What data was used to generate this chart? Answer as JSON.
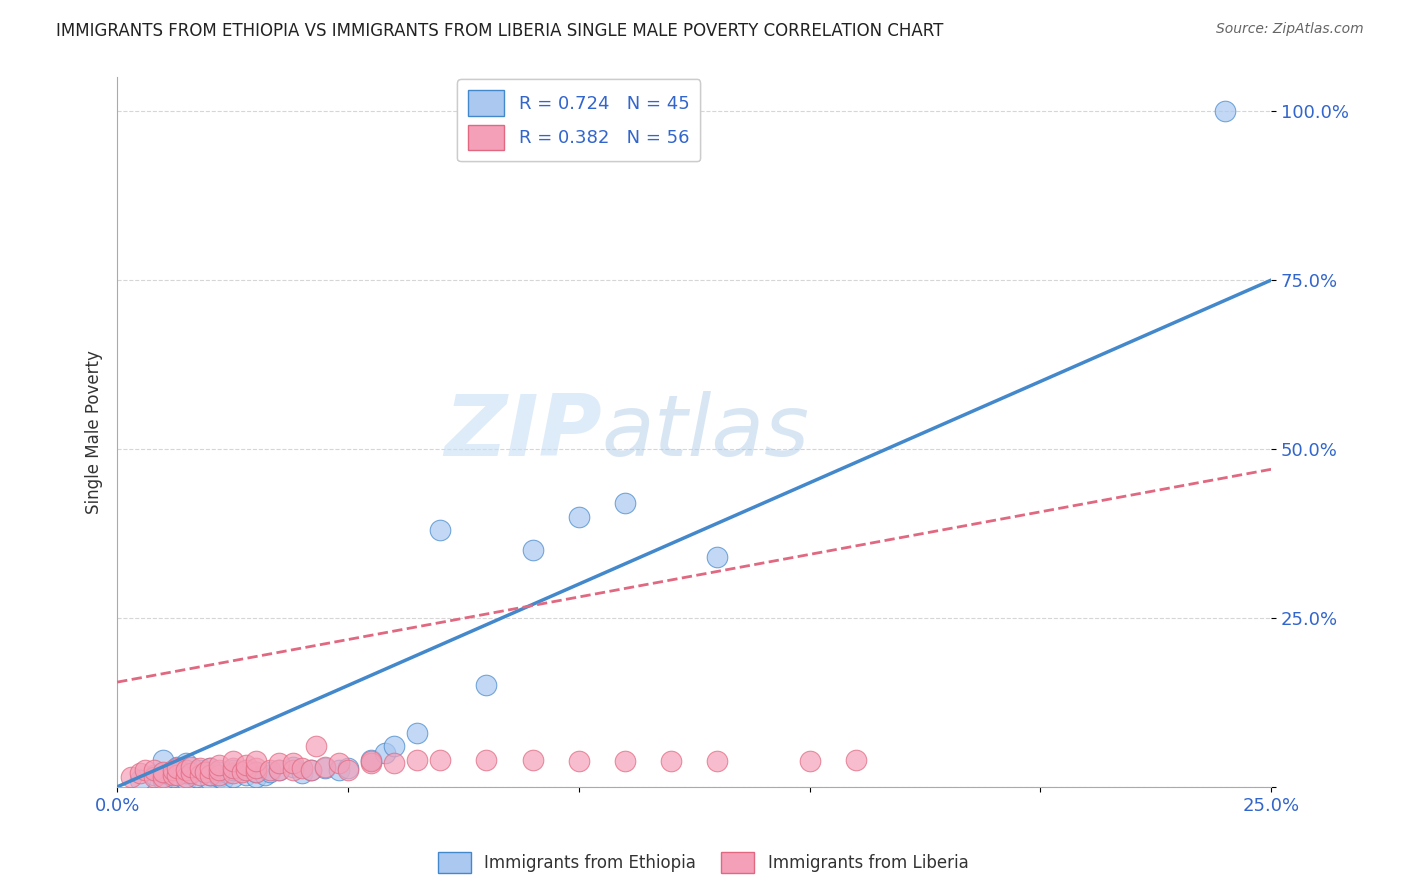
{
  "title": "IMMIGRANTS FROM ETHIOPIA VS IMMIGRANTS FROM LIBERIA SINGLE MALE POVERTY CORRELATION CHART",
  "source": "Source: ZipAtlas.com",
  "ylabel": "Single Male Poverty",
  "xlim": [
    0.0,
    0.25
  ],
  "ylim": [
    0.0,
    1.05
  ],
  "yticks": [
    0.0,
    0.25,
    0.5,
    0.75,
    1.0
  ],
  "xticks": [
    0.0,
    0.05,
    0.1,
    0.15,
    0.2,
    0.25
  ],
  "xtick_labels": [
    "0.0%",
    "",
    "",
    "",
    "",
    "25.0%"
  ],
  "ytick_labels": [
    "",
    "25.0%",
    "50.0%",
    "75.0%",
    "100.0%"
  ],
  "ethiopia_color": "#aac8f0",
  "liberia_color": "#f4a0b8",
  "ethiopia_line_color": "#4488cc",
  "liberia_line_color": "#e06880",
  "ethiopia_R": 0.724,
  "ethiopia_N": 45,
  "liberia_R": 0.382,
  "liberia_N": 56,
  "legend_label_ethiopia": "R = 0.724   N = 45",
  "legend_label_liberia": "R = 0.382   N = 56",
  "bottom_legend_ethiopia": "Immigrants from Ethiopia",
  "bottom_legend_liberia": "Immigrants from Liberia",
  "watermark_zip": "ZIP",
  "watermark_atlas": "atlas",
  "background_color": "#ffffff",
  "ethiopia_line_x0": 0.0,
  "ethiopia_line_y0": 0.0,
  "ethiopia_line_x1": 0.25,
  "ethiopia_line_y1": 0.75,
  "liberia_line_x0": 0.0,
  "liberia_line_y0": 0.155,
  "liberia_line_x1": 0.25,
  "liberia_line_y1": 0.47,
  "ethiopia_scatter_x": [
    0.005,
    0.008,
    0.01,
    0.01,
    0.01,
    0.012,
    0.013,
    0.015,
    0.015,
    0.015,
    0.017,
    0.018,
    0.02,
    0.02,
    0.02,
    0.022,
    0.022,
    0.023,
    0.024,
    0.025,
    0.025,
    0.028,
    0.028,
    0.03,
    0.03,
    0.032,
    0.033,
    0.035,
    0.038,
    0.04,
    0.042,
    0.045,
    0.048,
    0.05,
    0.055,
    0.058,
    0.06,
    0.065,
    0.07,
    0.08,
    0.09,
    0.1,
    0.11,
    0.13,
    0.24
  ],
  "ethiopia_scatter_y": [
    0.01,
    0.018,
    0.01,
    0.02,
    0.04,
    0.015,
    0.03,
    0.01,
    0.02,
    0.035,
    0.015,
    0.025,
    0.01,
    0.018,
    0.028,
    0.015,
    0.022,
    0.012,
    0.02,
    0.015,
    0.025,
    0.018,
    0.025,
    0.015,
    0.022,
    0.018,
    0.022,
    0.025,
    0.03,
    0.02,
    0.025,
    0.028,
    0.025,
    0.028,
    0.04,
    0.05,
    0.06,
    0.08,
    0.38,
    0.15,
    0.35,
    0.4,
    0.42,
    0.34,
    1.0
  ],
  "liberia_scatter_x": [
    0.003,
    0.005,
    0.006,
    0.008,
    0.008,
    0.01,
    0.01,
    0.012,
    0.012,
    0.013,
    0.013,
    0.015,
    0.015,
    0.016,
    0.016,
    0.018,
    0.018,
    0.019,
    0.02,
    0.02,
    0.022,
    0.022,
    0.022,
    0.025,
    0.025,
    0.025,
    0.027,
    0.028,
    0.028,
    0.03,
    0.03,
    0.03,
    0.033,
    0.035,
    0.035,
    0.038,
    0.038,
    0.04,
    0.042,
    0.043,
    0.045,
    0.048,
    0.05,
    0.055,
    0.055,
    0.06,
    0.065,
    0.07,
    0.08,
    0.09,
    0.1,
    0.11,
    0.12,
    0.13,
    0.15,
    0.16
  ],
  "liberia_scatter_y": [
    0.015,
    0.02,
    0.025,
    0.015,
    0.025,
    0.015,
    0.022,
    0.018,
    0.025,
    0.018,
    0.028,
    0.015,
    0.025,
    0.02,
    0.03,
    0.018,
    0.028,
    0.022,
    0.018,
    0.028,
    0.018,
    0.025,
    0.032,
    0.02,
    0.028,
    0.038,
    0.022,
    0.025,
    0.032,
    0.022,
    0.028,
    0.038,
    0.025,
    0.025,
    0.035,
    0.025,
    0.035,
    0.028,
    0.025,
    0.06,
    0.03,
    0.035,
    0.025,
    0.035,
    0.038,
    0.035,
    0.04,
    0.04,
    0.04,
    0.04,
    0.038,
    0.038,
    0.038,
    0.038,
    0.038,
    0.04
  ]
}
